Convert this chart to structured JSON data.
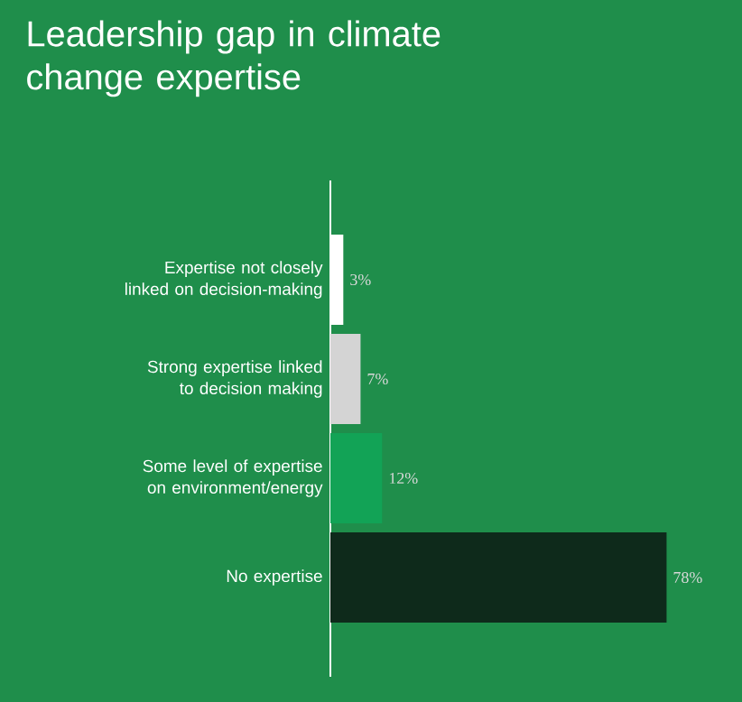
{
  "chart_data": {
    "type": "bar",
    "orientation": "horizontal",
    "title": "Leadership gap in climate change expertise",
    "categories": [
      "Expertise not closely linked on decision-making",
      "Strong expertise linked to decision making",
      "Some level of expertise on environment/energy",
      "No expertise"
    ],
    "values": [
      3,
      7,
      12,
      78
    ],
    "value_labels": [
      "3%",
      "7%",
      "12%",
      "78%"
    ],
    "colors": [
      "#ffffff",
      "#d4d4d4",
      "#12a356",
      "#0e2a1b"
    ]
  }
}
